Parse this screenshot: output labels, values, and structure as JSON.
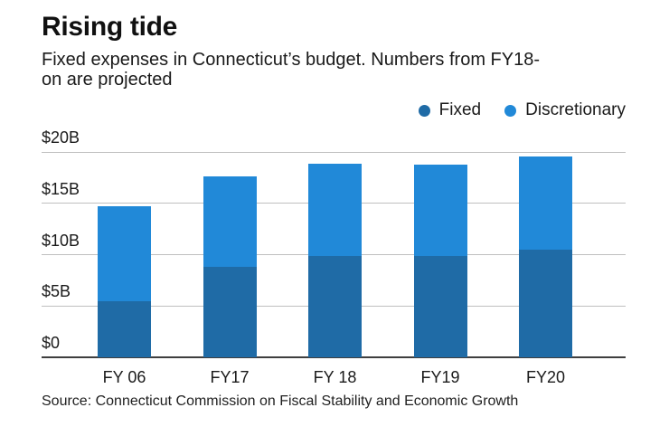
{
  "header": {
    "title": "Rising tide",
    "subtitle_line1": "Fixed expenses in Connecticut’s budget. Numbers from FY18-",
    "subtitle_line2": "on are projected"
  },
  "legend": {
    "items": [
      {
        "label": "Fixed",
        "color": "#1f6ba6"
      },
      {
        "label": "Discretionary",
        "color": "#2189d8"
      }
    ]
  },
  "source": "Source: Connecticut Commission on Fiscal Stability and Economic Growth",
  "chart_data": {
    "type": "bar",
    "stacked": true,
    "title": "Rising tide",
    "subtitle": "Fixed expenses in Connecticut’s budget. Numbers from FY18-on are projected",
    "categories": [
      "FY 06",
      "FY17",
      "FY 18",
      "FY19",
      "FY20"
    ],
    "series": [
      {
        "name": "Fixed",
        "color": "#1f6ba6",
        "values": [
          5.5,
          8.8,
          9.9,
          9.9,
          10.5
        ]
      },
      {
        "name": "Discretionary",
        "color": "#2189d8",
        "values": [
          9.2,
          8.8,
          9.0,
          8.9,
          9.1
        ]
      }
    ],
    "totals": [
      14.7,
      17.6,
      18.9,
      18.8,
      19.6
    ],
    "ylim": [
      0,
      20
    ],
    "y_tick_values": [
      20,
      15,
      10,
      5,
      0
    ],
    "y_ticks": [
      "$20B",
      "$15B",
      "$10B",
      "$5B",
      "$0"
    ],
    "xlabel": "",
    "ylabel": "",
    "grid": "horizontal",
    "legend_position": "top-right",
    "gridline_color": "#bfbfbf",
    "baseline_color": "#3f3f3f"
  }
}
